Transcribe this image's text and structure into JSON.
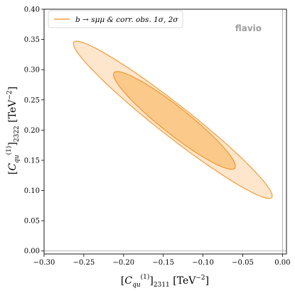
{
  "chart_data": {
    "type": "contour",
    "xlabel": "[C_qu^(1)]_2311 [TeV^-2]",
    "ylabel": "[C_qu^(1)]_2322 [TeV^-2]",
    "xlim": [
      -0.3,
      0.005
    ],
    "ylim": [
      -0.005,
      0.4
    ],
    "xticks": [
      "−0.30",
      "−0.25",
      "−0.20",
      "−0.15",
      "−0.10",
      "−0.05",
      "0.00"
    ],
    "yticks": [
      "0.00",
      "0.05",
      "0.10",
      "0.15",
      "0.20",
      "0.25",
      "0.30",
      "0.35",
      "0.40"
    ],
    "reference_lines": {
      "x": 0,
      "y": 0
    },
    "legend": {
      "placement": "top-left",
      "label": "b → sμμ & corr. obs. 1σ, 2σ"
    },
    "watermark": "flavio",
    "series": [
      {
        "name": "b → sμμ & corr. obs. 1σ, 2σ",
        "color": "#f28c1a",
        "regions": [
          {
            "level": "2σ",
            "center": [
              -0.138,
              0.217
            ],
            "fill": "#fde6cc",
            "extreme_points": [
              [
                -0.262,
                0.345
              ],
              [
                -0.013,
                0.088
              ]
            ]
          },
          {
            "level": "1σ",
            "center": [
              -0.136,
              0.216
            ],
            "fill": "#fbc98a",
            "extreme_points": [
              [
                -0.212,
                0.295
              ],
              [
                -0.06,
                0.137
              ]
            ]
          }
        ]
      }
    ]
  }
}
